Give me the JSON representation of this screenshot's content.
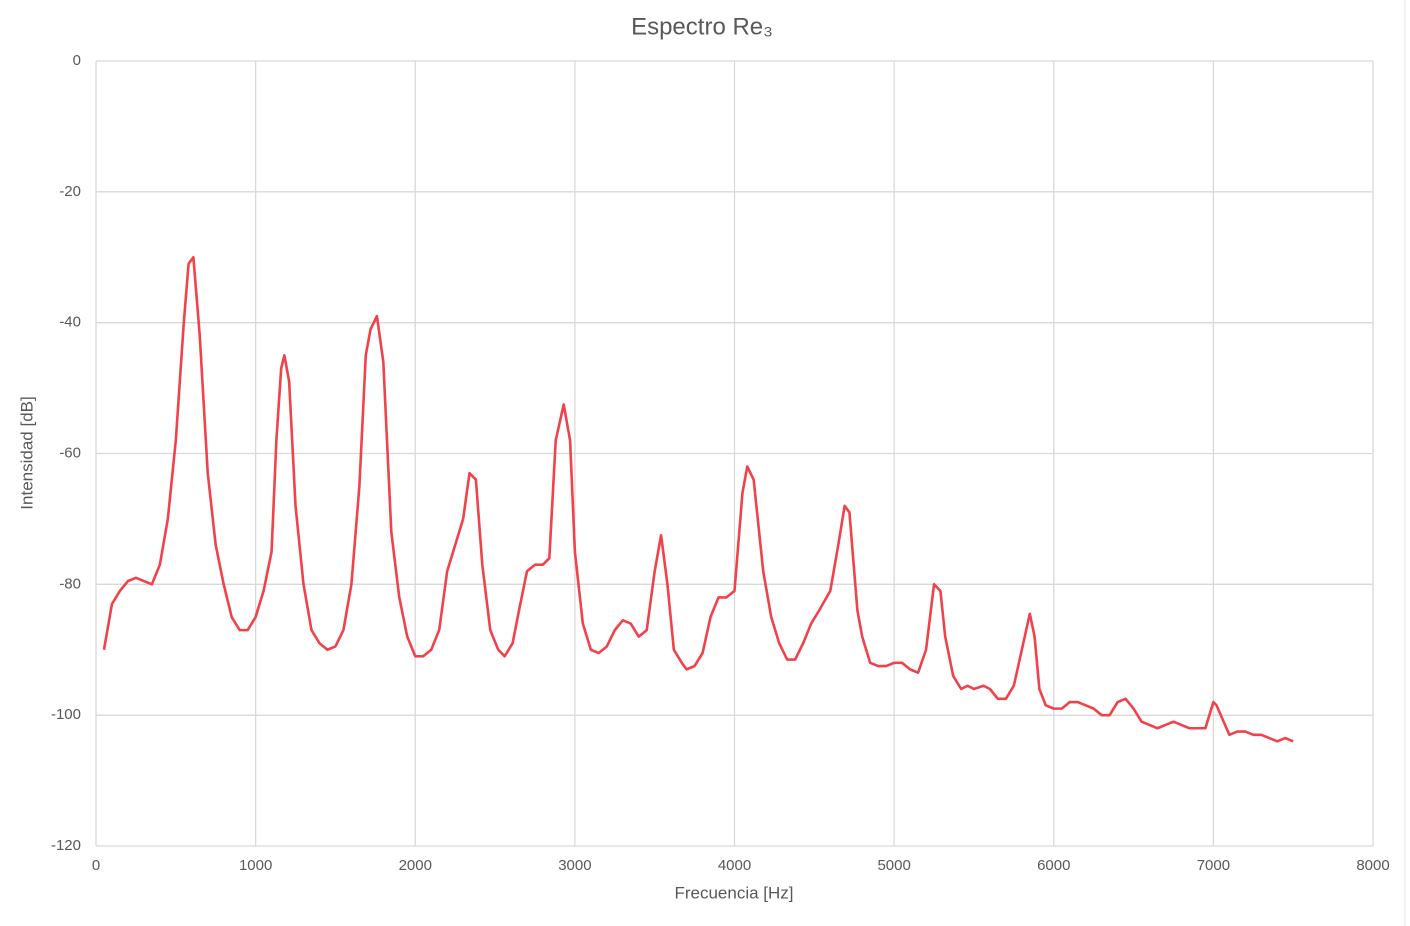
{
  "chart_data": {
    "type": "line",
    "title": "Espectro Re₃",
    "x_label": "Frecuencia [Hz]",
    "y_label": "Intensidad [dB]",
    "xlim": [
      0,
      8000
    ],
    "xticks": [
      0,
      1000,
      2000,
      3000,
      4000,
      5000,
      6000,
      7000,
      8000
    ],
    "ylim": [
      -120,
      0
    ],
    "yticks": [
      0,
      -20,
      -40,
      -60,
      -80,
      -100,
      -120
    ],
    "grid": true,
    "x": [
      50,
      100,
      150,
      200,
      250,
      300,
      350,
      400,
      450,
      500,
      550,
      580,
      610,
      650,
      700,
      750,
      800,
      850,
      900,
      950,
      1000,
      1050,
      1100,
      1130,
      1160,
      1180,
      1210,
      1250,
      1300,
      1350,
      1400,
      1450,
      1500,
      1550,
      1600,
      1650,
      1690,
      1720,
      1760,
      1800,
      1850,
      1900,
      1950,
      2000,
      2050,
      2100,
      2150,
      2200,
      2250,
      2300,
      2340,
      2380,
      2420,
      2470,
      2520,
      2560,
      2610,
      2650,
      2700,
      2750,
      2800,
      2840,
      2880,
      2930,
      2970,
      3000,
      3050,
      3100,
      3150,
      3200,
      3250,
      3300,
      3350,
      3400,
      3450,
      3500,
      3540,
      3580,
      3620,
      3670,
      3700,
      3750,
      3800,
      3850,
      3900,
      3950,
      4000,
      4050,
      4080,
      4120,
      4180,
      4230,
      4280,
      4330,
      4380,
      4430,
      4480,
      4530,
      4600,
      4650,
      4690,
      4720,
      4770,
      4800,
      4850,
      4900,
      4950,
      5000,
      5050,
      5100,
      5150,
      5200,
      5250,
      5290,
      5320,
      5370,
      5420,
      5460,
      5500,
      5560,
      5600,
      5650,
      5700,
      5750,
      5800,
      5850,
      5880,
      5910,
      5950,
      6000,
      6050,
      6100,
      6150,
      6200,
      6250,
      6300,
      6350,
      6400,
      6450,
      6500,
      6550,
      6600,
      6650,
      6700,
      6750,
      6800,
      6850,
      6900,
      6950,
      7000,
      7020,
      7100,
      7150,
      7200,
      7250,
      7300,
      7350,
      7400,
      7450,
      7500
    ],
    "series": [
      {
        "name": "Espectro",
        "color": "#f0424a",
        "values": [
          -90,
          -83,
          -81,
          -79.5,
          -79,
          -79.5,
          -80,
          -77,
          -70,
          -58,
          -40,
          -31,
          -30,
          -42,
          -63,
          -74,
          -80,
          -85,
          -87,
          -87,
          -85,
          -81,
          -75,
          -58,
          -47,
          -45,
          -49,
          -68,
          -80,
          -87,
          -89,
          -90,
          -89.5,
          -87,
          -80,
          -65,
          -45,
          -41,
          -39,
          -46,
          -72,
          -82,
          -88,
          -91,
          -91,
          -90,
          -87,
          -78,
          -74,
          -70,
          -63,
          -64,
          -77,
          -87,
          -90,
          -91,
          -89,
          -84,
          -78,
          -77,
          -77,
          -76,
          -58,
          -52.5,
          -58,
          -75,
          -86,
          -90,
          -90.5,
          -89.5,
          -87,
          -85.5,
          -86,
          -88,
          -87,
          -78,
          -72.5,
          -80,
          -90,
          -92,
          -93,
          -92.5,
          -90.5,
          -85,
          -82,
          -82,
          -81,
          -66,
          -62,
          -64,
          -78,
          -85,
          -89,
          -91.5,
          -91.5,
          -89,
          -86,
          -84,
          -81,
          -74,
          -68,
          -69,
          -84,
          -88,
          -92,
          -92.5,
          -92.5,
          -92,
          -92,
          -93,
          -93.5,
          -90,
          -80,
          -81,
          -88,
          -94,
          -96,
          -95.5,
          -96,
          -95.5,
          -96,
          -97.5,
          -97.5,
          -95.5,
          -90,
          -84.5,
          -88,
          -96,
          -98.5,
          -99,
          -99,
          -98,
          -98,
          -98.5,
          -99,
          -100,
          -100,
          -98,
          -97.5,
          -99,
          -101,
          -101.5,
          -102,
          -101.5,
          -101,
          -101.5,
          -102,
          -102,
          -102,
          -98,
          -98.5,
          -103,
          -102.5,
          -102.5,
          -103,
          -103,
          -103.5,
          -104,
          -103.5,
          -104
        ]
      }
    ]
  }
}
